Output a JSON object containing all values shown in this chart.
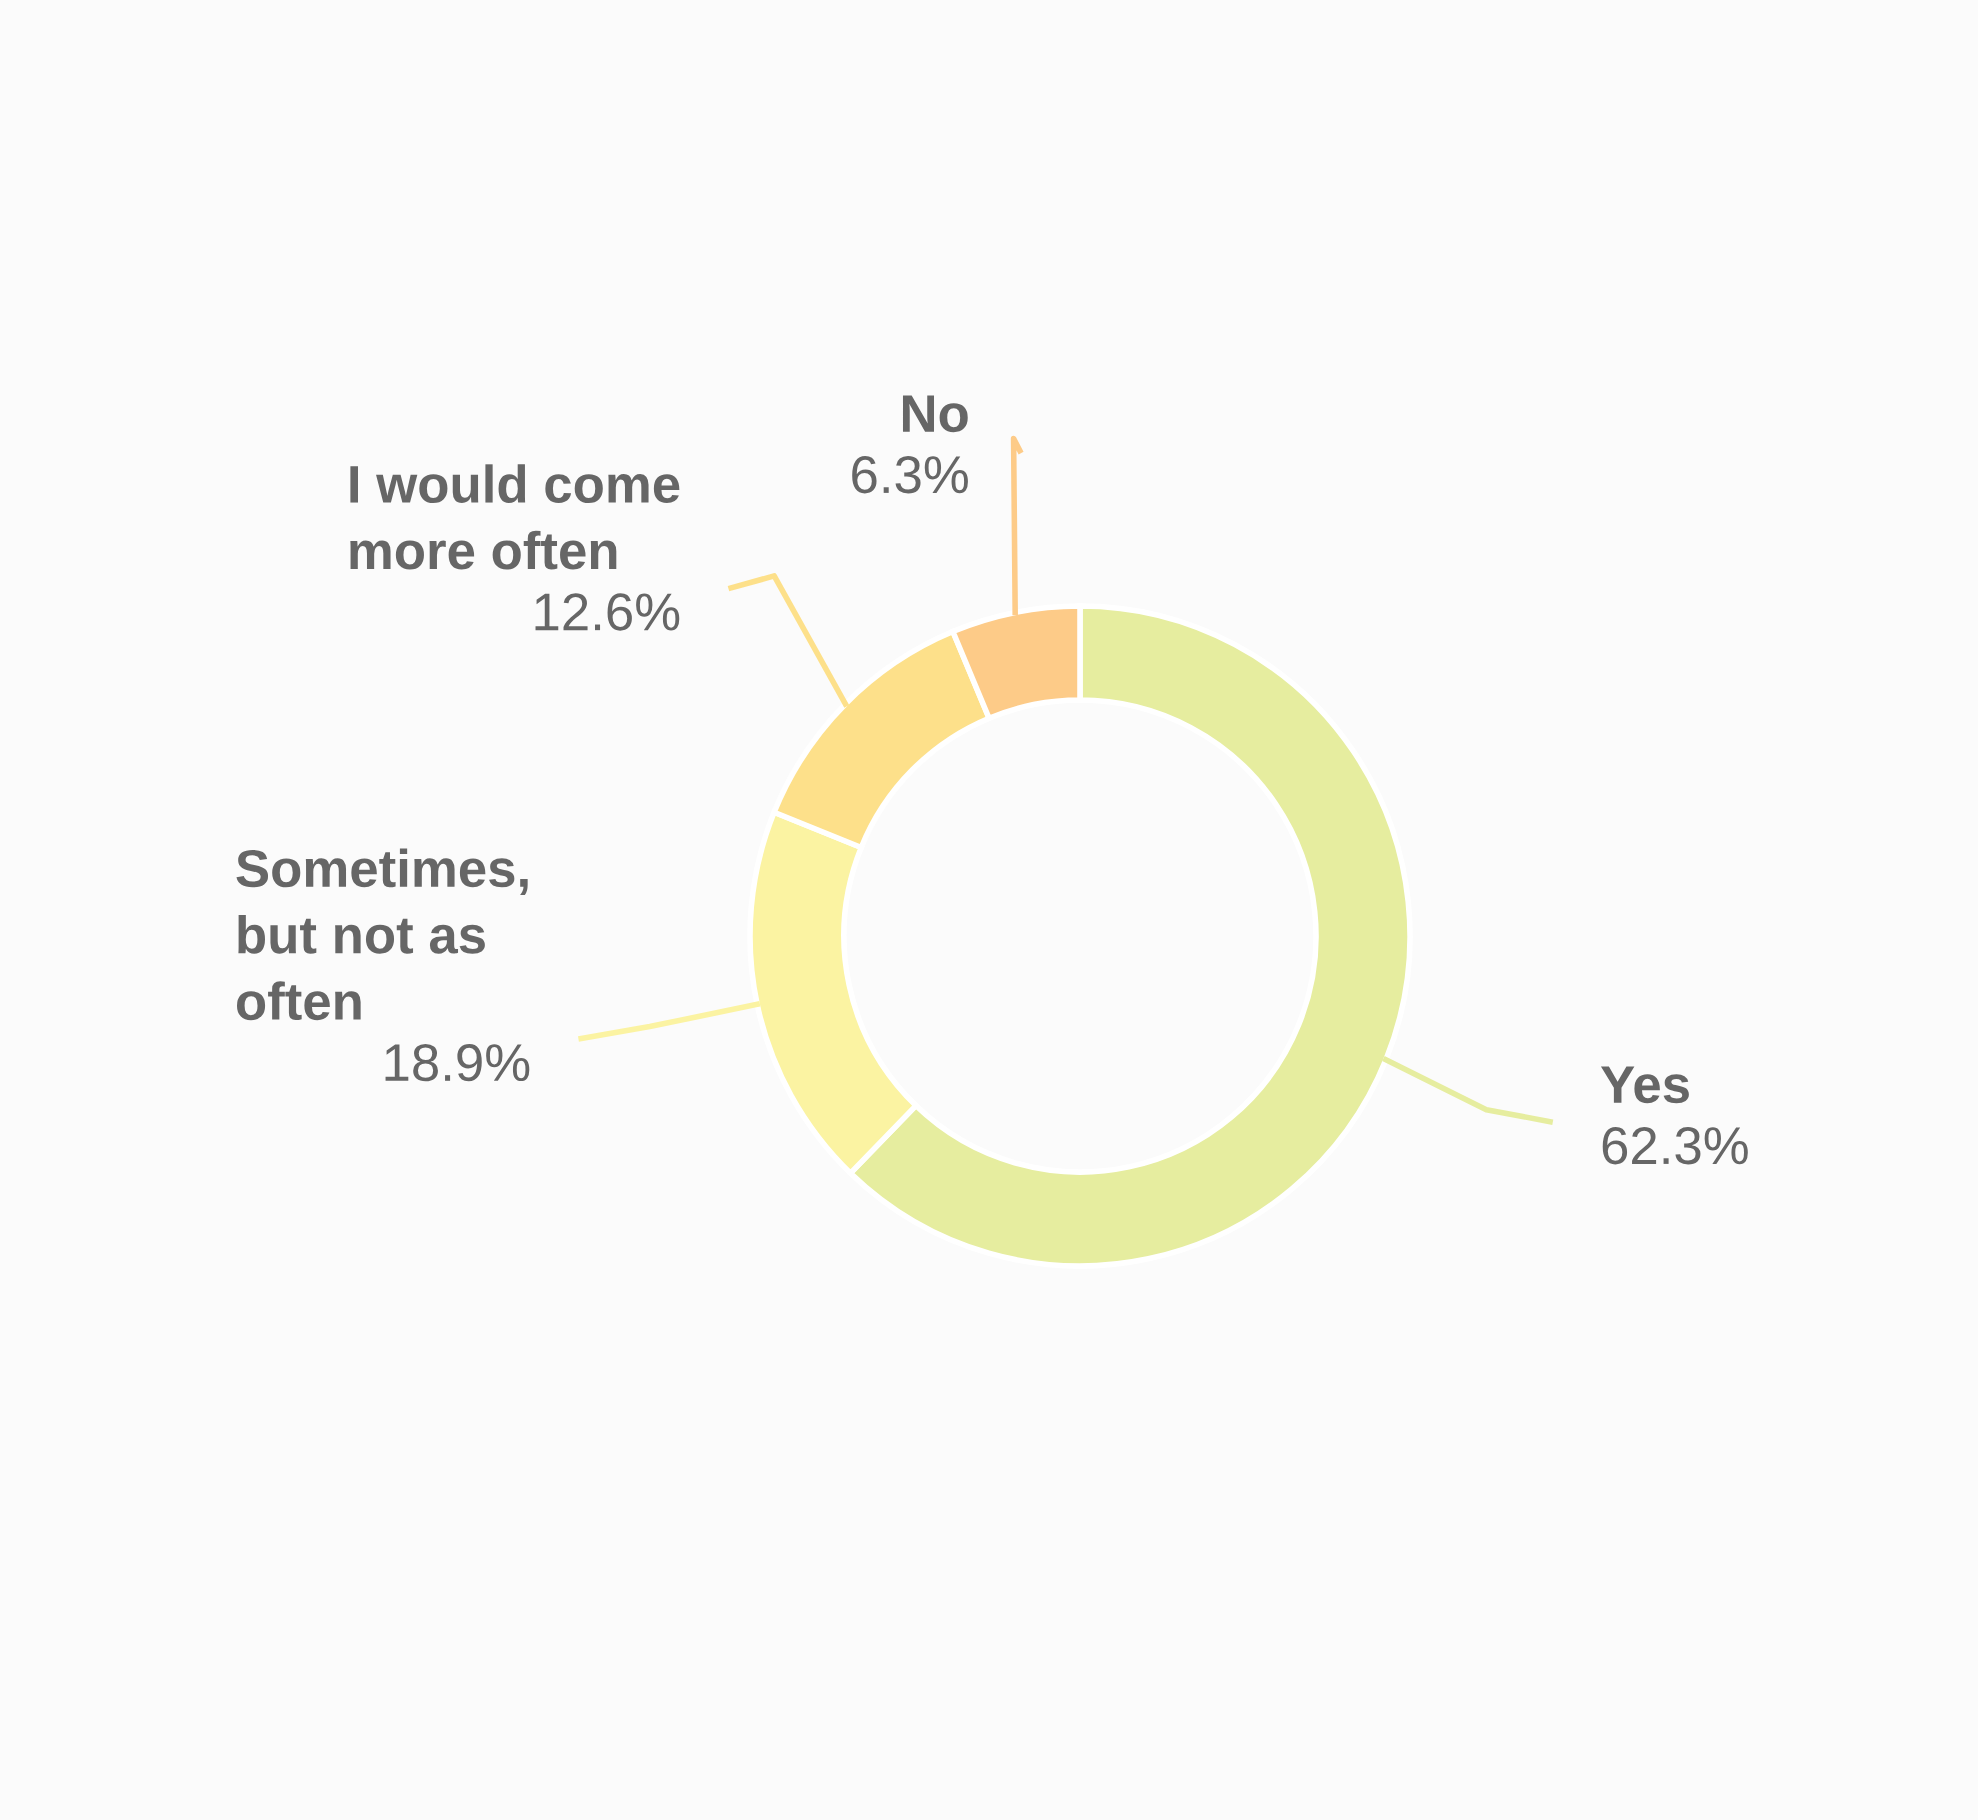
{
  "chart_data": {
    "type": "donut",
    "categories": [
      "Yes",
      "Sometimes, but not as often",
      "I would come more often",
      "No"
    ],
    "values": [
      62.3,
      18.9,
      12.6,
      6.3
    ],
    "colors": [
      "#e6ed9f",
      "#fbf3a2",
      "#fde08a",
      "#fdcb88"
    ],
    "value_labels": [
      "62.3%",
      "18.9%",
      "12.6%",
      "6.3%"
    ],
    "legend": false
  }
}
